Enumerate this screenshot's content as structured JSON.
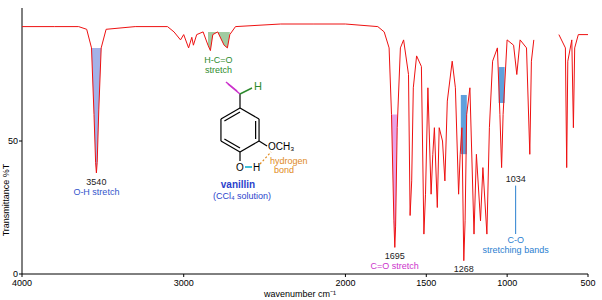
{
  "chart_data": {
    "type": "line",
    "x_label": "wavenumber cm⁻¹",
    "y_label": "Transmittance %T",
    "xlim": [
      4000,
      500
    ],
    "ylim": [
      0,
      100
    ],
    "xticks": [
      4000,
      3000,
      2000,
      1500,
      1000,
      500
    ],
    "yticks": [
      0,
      50
    ],
    "grid": false,
    "color": "#ee1111",
    "x": [
      4000,
      3800,
      3650,
      3600,
      3570,
      3555,
      3545,
      3540,
      3535,
      3525,
      3510,
      3480,
      3300,
      3100,
      3060,
      3020,
      3000,
      2970,
      2950,
      2940,
      2920,
      2880,
      2850,
      2835,
      2820,
      2790,
      2750,
      2730,
      2715,
      2680,
      2400,
      2200,
      2000,
      1800,
      1760,
      1730,
      1715,
      1700,
      1695,
      1690,
      1680,
      1660,
      1640,
      1610,
      1600,
      1590,
      1580,
      1560,
      1530,
      1515,
      1505,
      1490,
      1470,
      1460,
      1450,
      1432,
      1420,
      1400,
      1385,
      1370,
      1340,
      1320,
      1300,
      1290,
      1280,
      1268,
      1260,
      1250,
      1230,
      1205,
      1190,
      1165,
      1150,
      1125,
      1110,
      1090,
      1060,
      1045,
      1034,
      1025,
      1000,
      960,
      940,
      920,
      880,
      860,
      850,
      835,
      760,
      680,
      640,
      632,
      625,
      600,
      590,
      582,
      560,
      500
    ],
    "values": [
      93,
      93,
      93,
      92,
      85,
      60,
      42,
      38,
      42,
      62,
      85,
      92,
      93,
      93,
      91,
      88,
      90,
      85,
      89,
      86,
      90,
      91,
      86,
      84,
      90,
      91,
      86,
      85,
      90,
      93,
      94,
      94,
      94,
      93,
      91,
      85,
      60,
      20,
      10,
      18,
      55,
      85,
      88,
      75,
      22,
      35,
      70,
      82,
      78,
      15,
      30,
      70,
      30,
      45,
      55,
      25,
      55,
      50,
      35,
      65,
      80,
      70,
      30,
      45,
      55,
      5,
      20,
      60,
      70,
      15,
      45,
      20,
      40,
      15,
      55,
      80,
      85,
      60,
      40,
      60,
      88,
      86,
      75,
      88,
      85,
      45,
      80,
      88,
      null,
      90,
      85,
      40,
      80,
      88,
      55,
      85,
      90,
      90
    ],
    "bands": [
      {
        "name": [
          "O-H stretch"
        ],
        "from": 3575,
        "to": 3505,
        "peak": 3540,
        "color": "#3355cc"
      },
      {
        "name": [
          "H-C=O",
          "stretch"
        ],
        "from": 2870,
        "to": 2700,
        "color": "#2e8b2e"
      },
      {
        "name": [
          "C=O stretch"
        ],
        "from": 1725,
        "to": 1665,
        "peak": 1695,
        "color": "#cc33cc"
      },
      {
        "name": [
          "C-O",
          "stretching bands"
        ],
        "peaks": [
          1268,
          1034
        ],
        "color": "#2a80d0"
      }
    ],
    "structure": {
      "name": "vanillin",
      "solvent": "(CCl₄ solution)",
      "methoxy": "OCH₃",
      "hydroxyl": [
        "O",
        "H"
      ],
      "aldehyde_h": "H",
      "note": [
        "hydrogen",
        "bond"
      ]
    }
  }
}
